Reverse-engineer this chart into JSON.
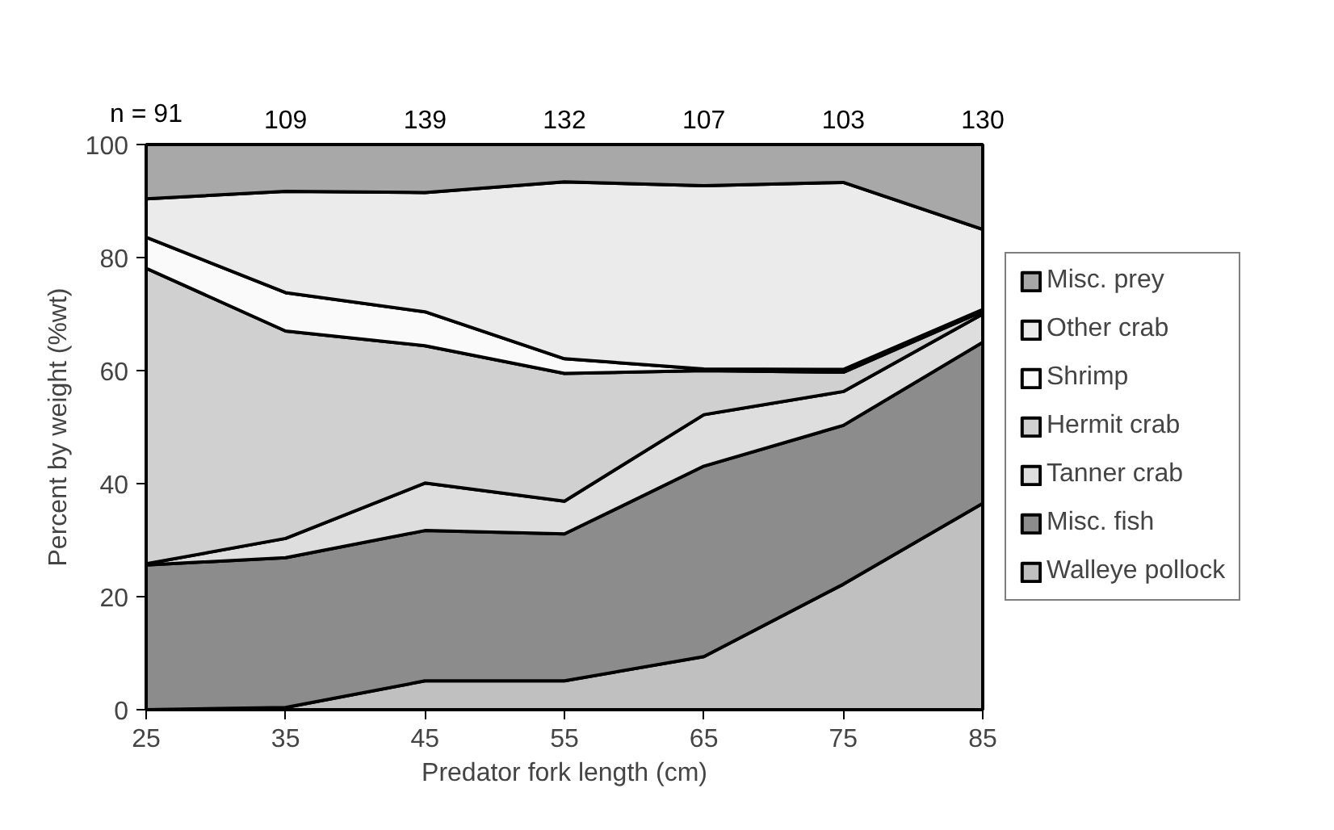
{
  "chart_data": {
    "type": "area",
    "stacked": true,
    "xlabel": "Predator fork length (cm)",
    "ylabel": "Percent by weight (%wt)",
    "x": [
      25,
      35,
      45,
      55,
      65,
      75,
      85
    ],
    "xlim": [
      25,
      85
    ],
    "xticks": [
      25,
      35,
      45,
      55,
      65,
      75,
      85
    ],
    "ylim": [
      0,
      100
    ],
    "yticks": [
      0,
      20,
      40,
      60,
      80,
      100
    ],
    "annotations": [
      {
        "text": "n = 91",
        "x": 25,
        "y": 100
      },
      {
        "text": "109",
        "x": 35,
        "y": 100
      },
      {
        "text": "139",
        "x": 45,
        "y": 100
      },
      {
        "text": "132",
        "x": 55,
        "y": 100
      },
      {
        "text": "107",
        "x": 65,
        "y": 100
      },
      {
        "text": "103",
        "x": 75,
        "y": 100
      },
      {
        "text": "130",
        "x": 85,
        "y": 100
      }
    ],
    "legend": "right",
    "series": [
      {
        "name": "Walleye pollock",
        "color": "#c0c0c0",
        "values": [
          0,
          0.4,
          5.1,
          5.1,
          9.4,
          22.2,
          36.5
        ]
      },
      {
        "name": "Misc. fish",
        "color": "#8c8c8c",
        "values": [
          25.6,
          26.5,
          26.6,
          26,
          33.7,
          28.1,
          28.5
        ]
      },
      {
        "name": "Tanner crab",
        "color": "#dedede",
        "values": [
          0.2,
          3.4,
          8.4,
          5.8,
          9.1,
          6,
          5
        ]
      },
      {
        "name": "Hermit crab",
        "color": "#d0d0d0",
        "values": [
          52.3,
          36.7,
          24.3,
          22.6,
          7.8,
          3.4,
          0.5
        ]
      },
      {
        "name": "Shrimp",
        "color": "#fafafa",
        "values": [
          5.5,
          6.8,
          6,
          2.6,
          0.3,
          0.5,
          0.3
        ]
      },
      {
        "name": "Other crab",
        "color": "#ebebeb",
        "values": [
          6.8,
          17.9,
          21.1,
          31.3,
          32.4,
          33.1,
          14.2
        ]
      },
      {
        "name": "Misc. prey",
        "color": "#a8a8a8",
        "values": [
          9.6,
          8.3,
          8.5,
          6.6,
          7.3,
          6.7,
          15
        ]
      }
    ]
  }
}
